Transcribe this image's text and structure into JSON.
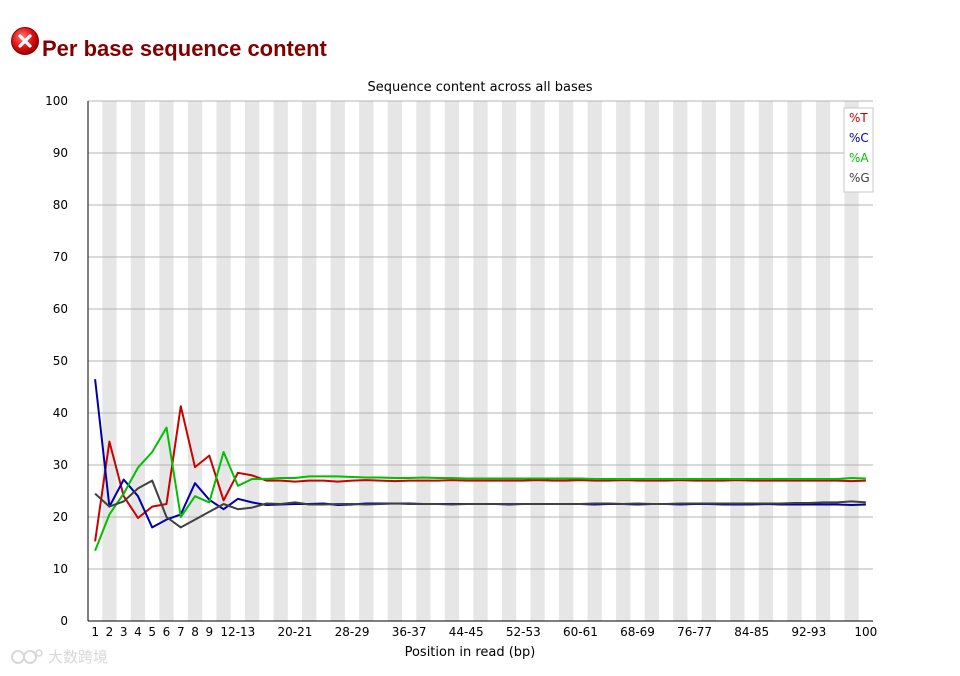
{
  "page": {
    "title": "Per base sequence content",
    "status_icon": "fail-icon"
  },
  "watermark": {
    "text": "大数跨境",
    "icon": "watermark-logo-icon"
  },
  "chart_data": {
    "type": "line",
    "title": "Sequence content across all bases",
    "xlabel": "Position in read (bp)",
    "ylabel": "",
    "ylim": [
      0,
      100
    ],
    "yticks": [
      0,
      10,
      20,
      30,
      40,
      50,
      60,
      70,
      80,
      90,
      100
    ],
    "grid": true,
    "legend_position": "top-right",
    "categories": [
      "1",
      "2",
      "3",
      "4",
      "5",
      "6",
      "7",
      "8",
      "9",
      "10-11",
      "12-13",
      "14-15",
      "16-17",
      "18-19",
      "20-21",
      "22-23",
      "24-25",
      "26-27",
      "28-29",
      "30-31",
      "32-33",
      "34-35",
      "36-37",
      "38-39",
      "40-41",
      "42-43",
      "44-45",
      "46-47",
      "48-49",
      "50-51",
      "52-53",
      "54-55",
      "56-57",
      "58-59",
      "60-61",
      "62-63",
      "64-65",
      "66-67",
      "68-69",
      "70-71",
      "72-73",
      "74-75",
      "76-77",
      "78-79",
      "80-81",
      "82-83",
      "84-85",
      "86-87",
      "88-89",
      "90-91",
      "92-93",
      "94-95",
      "96-97",
      "98-99",
      "100"
    ],
    "xtick_labels": [
      "1",
      "2",
      "3",
      "4",
      "5",
      "6",
      "7",
      "8",
      "9",
      "12-13",
      "20-21",
      "28-29",
      "36-37",
      "44-45",
      "52-53",
      "60-61",
      "68-69",
      "76-77",
      "84-85",
      "92-93",
      "100"
    ],
    "series": [
      {
        "name": "%T",
        "color": "#cc0000",
        "values": [
          15.3,
          34.5,
          24.0,
          19.8,
          22.0,
          22.5,
          41.3,
          29.6,
          31.8,
          23.2,
          28.5,
          28.0,
          27.0,
          27.0,
          26.8,
          27.0,
          27.0,
          26.8,
          27.0,
          27.1,
          27.0,
          26.9,
          27.0,
          27.0,
          27.0,
          27.1,
          27.0,
          27.0,
          27.0,
          27.0,
          27.0,
          27.1,
          27.0,
          27.0,
          27.1,
          27.0,
          27.0,
          27.1,
          27.0,
          27.0,
          27.0,
          27.1,
          27.0,
          27.0,
          27.0,
          27.1,
          27.0,
          27.0,
          27.0,
          27.0,
          27.0,
          27.0,
          27.0,
          26.9,
          27.0
        ]
      },
      {
        "name": "%C",
        "color": "#0000aa",
        "values": [
          46.5,
          22.0,
          27.2,
          24.0,
          18.0,
          19.5,
          20.5,
          26.5,
          23.3,
          21.5,
          23.5,
          22.8,
          22.3,
          22.4,
          22.5,
          22.5,
          22.6,
          22.3,
          22.4,
          22.6,
          22.6,
          22.6,
          22.6,
          22.5,
          22.5,
          22.5,
          22.5,
          22.5,
          22.5,
          22.4,
          22.5,
          22.5,
          22.5,
          22.5,
          22.5,
          22.4,
          22.5,
          22.5,
          22.4,
          22.5,
          22.5,
          22.4,
          22.5,
          22.5,
          22.4,
          22.4,
          22.4,
          22.5,
          22.4,
          22.4,
          22.4,
          22.4,
          22.4,
          22.3,
          22.4
        ]
      },
      {
        "name": "%A",
        "color": "#00c000",
        "values": [
          13.5,
          20.5,
          24.5,
          29.5,
          32.5,
          37.2,
          20.0,
          24.0,
          22.8,
          32.5,
          26.0,
          27.3,
          27.3,
          27.5,
          27.5,
          27.8,
          27.8,
          27.8,
          27.7,
          27.6,
          27.6,
          27.5,
          27.5,
          27.6,
          27.5,
          27.5,
          27.4,
          27.4,
          27.4,
          27.4,
          27.4,
          27.4,
          27.4,
          27.4,
          27.4,
          27.3,
          27.3,
          27.3,
          27.3,
          27.3,
          27.3,
          27.3,
          27.3,
          27.3,
          27.3,
          27.3,
          27.3,
          27.3,
          27.3,
          27.3,
          27.3,
          27.3,
          27.3,
          27.5,
          27.4
        ]
      },
      {
        "name": "%G",
        "color": "#404040",
        "values": [
          24.5,
          22.0,
          23.0,
          25.5,
          27.0,
          20.0,
          18.0,
          19.5,
          21.0,
          22.5,
          21.5,
          21.8,
          22.6,
          22.5,
          22.8,
          22.4,
          22.4,
          22.5,
          22.5,
          22.4,
          22.5,
          22.6,
          22.5,
          22.5,
          22.5,
          22.4,
          22.5,
          22.5,
          22.5,
          22.5,
          22.5,
          22.5,
          22.5,
          22.5,
          22.5,
          22.6,
          22.6,
          22.5,
          22.6,
          22.5,
          22.5,
          22.6,
          22.6,
          22.6,
          22.6,
          22.6,
          22.6,
          22.6,
          22.6,
          22.7,
          22.7,
          22.8,
          22.8,
          23.0,
          22.8
        ]
      }
    ]
  }
}
